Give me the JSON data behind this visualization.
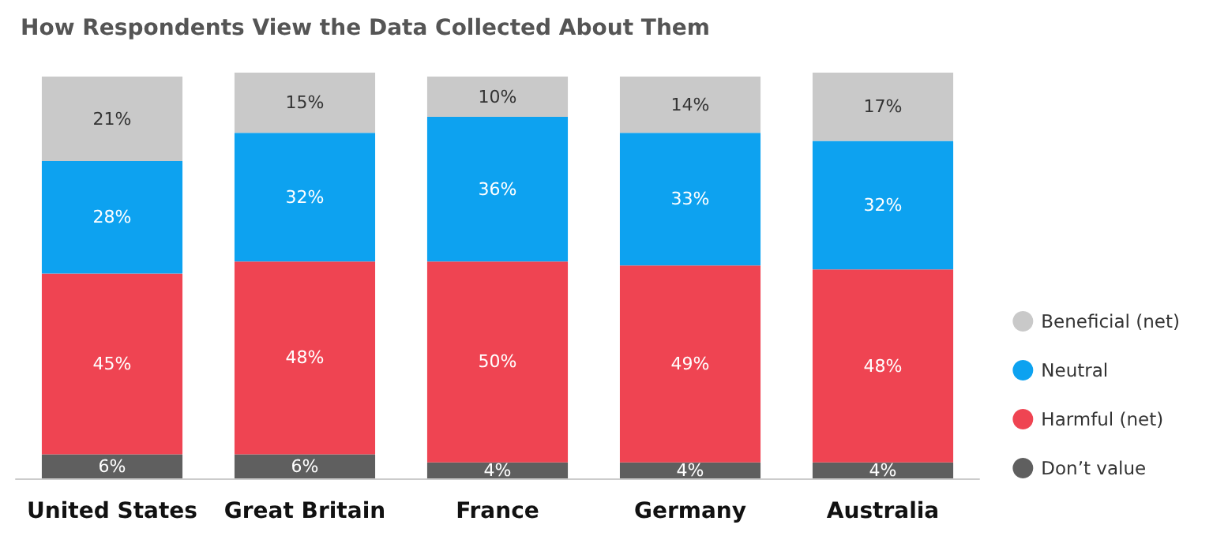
{
  "chart_data": {
    "type": "bar",
    "title": "How Respondents View the Data Collected About Them",
    "stacked": true,
    "legend": "right",
    "categories": [
      "United States",
      "Great Britain",
      "France",
      "Germany",
      "Australia"
    ],
    "series": [
      {
        "name": "Don’t value",
        "color": "#5f5f5f",
        "values": [
          6,
          6,
          4,
          4,
          4
        ],
        "value_labels": [
          "6%",
          "6%",
          "4%",
          "4%",
          "4%"
        ]
      },
      {
        "name": "Harmful (net)",
        "color": "#ef4452",
        "values": [
          45,
          48,
          50,
          49,
          48
        ],
        "value_labels": [
          "45%",
          "48%",
          "50%",
          "49%",
          "48%"
        ]
      },
      {
        "name": "Neutral",
        "color": "#0da2f0",
        "values": [
          28,
          32,
          36,
          33,
          32
        ],
        "value_labels": [
          "28%",
          "32%",
          "36%",
          "33%",
          "32%"
        ]
      },
      {
        "name": "Beneficial (net)",
        "color": "#c9c9c9",
        "values": [
          21,
          15,
          10,
          14,
          17
        ],
        "value_labels": [
          "21%",
          "15%",
          "10%",
          "14%",
          "17%"
        ]
      }
    ]
  }
}
